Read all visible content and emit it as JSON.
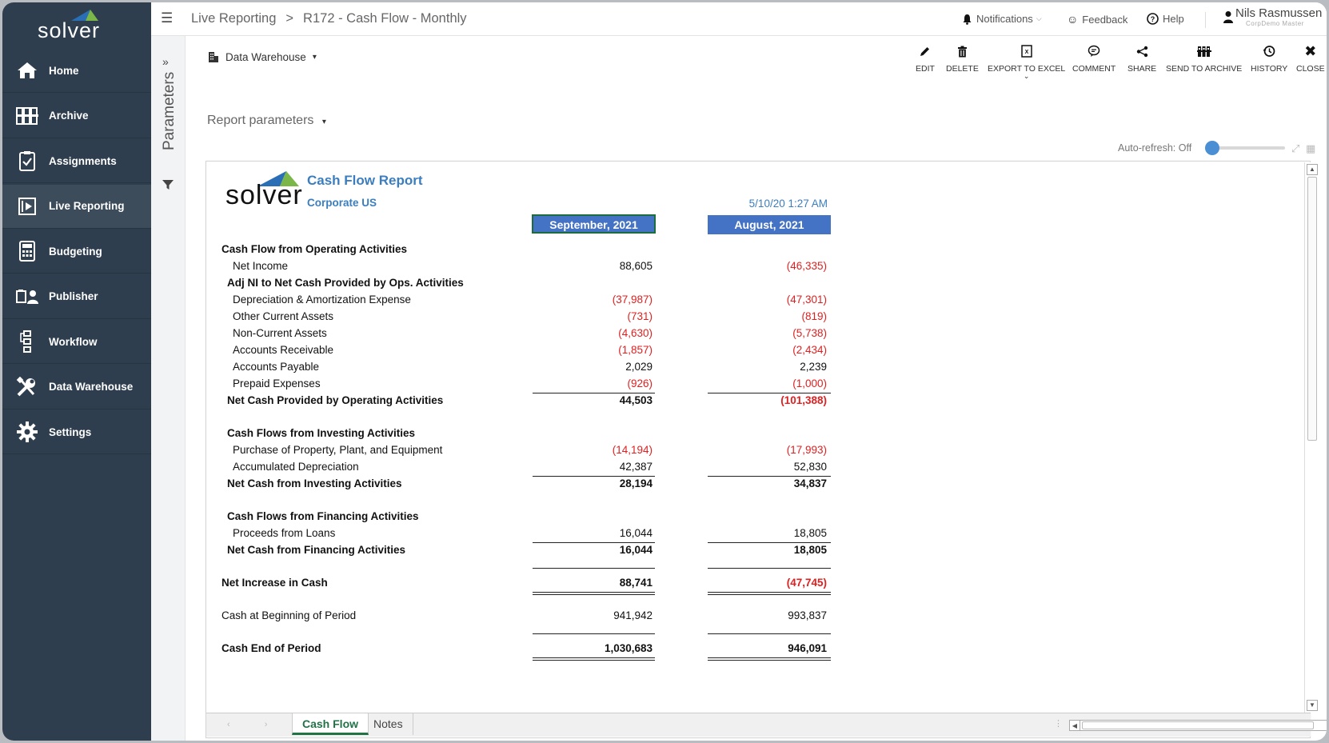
{
  "app": {
    "logo_text": "solver"
  },
  "sidebar": {
    "items": [
      {
        "label": "Home",
        "icon": "home-icon"
      },
      {
        "label": "Archive",
        "icon": "archive-icon"
      },
      {
        "label": "Assignments",
        "icon": "clipboard-icon"
      },
      {
        "label": "Live Reporting",
        "icon": "report-icon",
        "active": true
      },
      {
        "label": "Budgeting",
        "icon": "calculator-icon"
      },
      {
        "label": "Publisher",
        "icon": "publisher-icon"
      },
      {
        "label": "Workflow",
        "icon": "workflow-icon"
      },
      {
        "label": "Data Warehouse",
        "icon": "tools-icon"
      },
      {
        "label": "Settings",
        "icon": "gear-icon"
      }
    ]
  },
  "params": {
    "label": "Parameters"
  },
  "topbar": {
    "breadcrumb_root": "Live Reporting",
    "breadcrumb_sep": ">",
    "breadcrumb_current": "R172 - Cash Flow - Monthly",
    "notifications": "Notifications",
    "feedback": "Feedback",
    "help": "Help",
    "user_name": "Nils Rasmussen",
    "user_role": "CorpDemo Master"
  },
  "toolbar": {
    "source": "Data Warehouse",
    "actions": [
      {
        "label": "EDIT",
        "icon": "pencil-icon"
      },
      {
        "label": "DELETE",
        "icon": "trash-icon"
      },
      {
        "label": "EXPORT TO EXCEL",
        "icon": "excel-icon"
      },
      {
        "label": "COMMENT",
        "icon": "comment-icon"
      },
      {
        "label": "SHARE",
        "icon": "share-icon"
      },
      {
        "label": "SEND TO ARCHIVE",
        "icon": "archive-send-icon"
      },
      {
        "label": "HISTORY",
        "icon": "history-icon"
      },
      {
        "label": "CLOSE",
        "icon": "close-icon"
      }
    ],
    "report_params": "Report parameters",
    "auto_refresh": "Auto-refresh: Off"
  },
  "report": {
    "title": "Cash Flow Report",
    "entity": "Corporate US",
    "logo_text": "solver",
    "timestamp": "5/10/20 1:27 AM",
    "columns": [
      "September, 2021",
      "August, 2021"
    ],
    "rows": [
      {
        "label": "Cash Flow from Operating Activities",
        "style": "header",
        "indent": 0
      },
      {
        "label": "Net Income",
        "style": "item",
        "indent": 2,
        "values": [
          "88,605",
          "(46,335)"
        ]
      },
      {
        "label": "Adj NI to Net Cash Provided by Ops. Activities",
        "style": "header",
        "indent": 1
      },
      {
        "label": "Depreciation & Amortization Expense",
        "style": "item",
        "indent": 2,
        "values": [
          "(37,987)",
          "(47,301)"
        ]
      },
      {
        "label": "Other Current Assets",
        "style": "item",
        "indent": 2,
        "values": [
          "(731)",
          "(819)"
        ]
      },
      {
        "label": "Non-Current Assets",
        "style": "item",
        "indent": 2,
        "values": [
          "(4,630)",
          "(5,738)"
        ]
      },
      {
        "label": "Accounts Receivable",
        "style": "item",
        "indent": 2,
        "values": [
          "(1,857)",
          "(2,434)"
        ]
      },
      {
        "label": "Accounts Payable",
        "style": "item",
        "indent": 2,
        "values": [
          "2,029",
          "2,239"
        ]
      },
      {
        "label": "Prepaid Expenses",
        "style": "item",
        "indent": 2,
        "values": [
          "(926)",
          "(1,000)"
        ]
      },
      {
        "label": "Net Cash Provided by Operating Activities",
        "style": "total",
        "indent": 1,
        "values": [
          "44,503",
          "(101,388)"
        ]
      },
      {
        "label": "Cash Flows from Investing Activities",
        "style": "header",
        "indent": 1
      },
      {
        "label": "Purchase of Property, Plant, and Equipment",
        "style": "item",
        "indent": 2,
        "values": [
          "(14,194)",
          "(17,993)"
        ]
      },
      {
        "label": "Accumulated Depreciation",
        "style": "item",
        "indent": 2,
        "values": [
          "42,387",
          "52,830"
        ]
      },
      {
        "label": "Net Cash from Investing Activities",
        "style": "total",
        "indent": 1,
        "values": [
          "28,194",
          "34,837"
        ]
      },
      {
        "label": "Cash Flows from Financing Activities",
        "style": "header",
        "indent": 1
      },
      {
        "label": "Proceeds from Loans",
        "style": "item",
        "indent": 2,
        "values": [
          "16,044",
          "18,805"
        ]
      },
      {
        "label": "Net Cash from Financing Activities",
        "style": "total",
        "indent": 1,
        "values": [
          "16,044",
          "18,805"
        ]
      },
      {
        "label": "Net Increase in Cash",
        "style": "grand",
        "indent": 0,
        "values": [
          "88,741",
          "(47,745)"
        ]
      },
      {
        "label": "Cash at Beginning of Period",
        "style": "plain",
        "indent": 0,
        "values": [
          "941,942",
          "993,837"
        ]
      },
      {
        "label": "Cash End of Period",
        "style": "grand",
        "indent": 0,
        "values": [
          "1,030,683",
          "946,091"
        ]
      }
    ]
  },
  "sheets": [
    {
      "label": "Cash Flow",
      "active": true
    },
    {
      "label": "Notes",
      "active": false
    }
  ]
}
